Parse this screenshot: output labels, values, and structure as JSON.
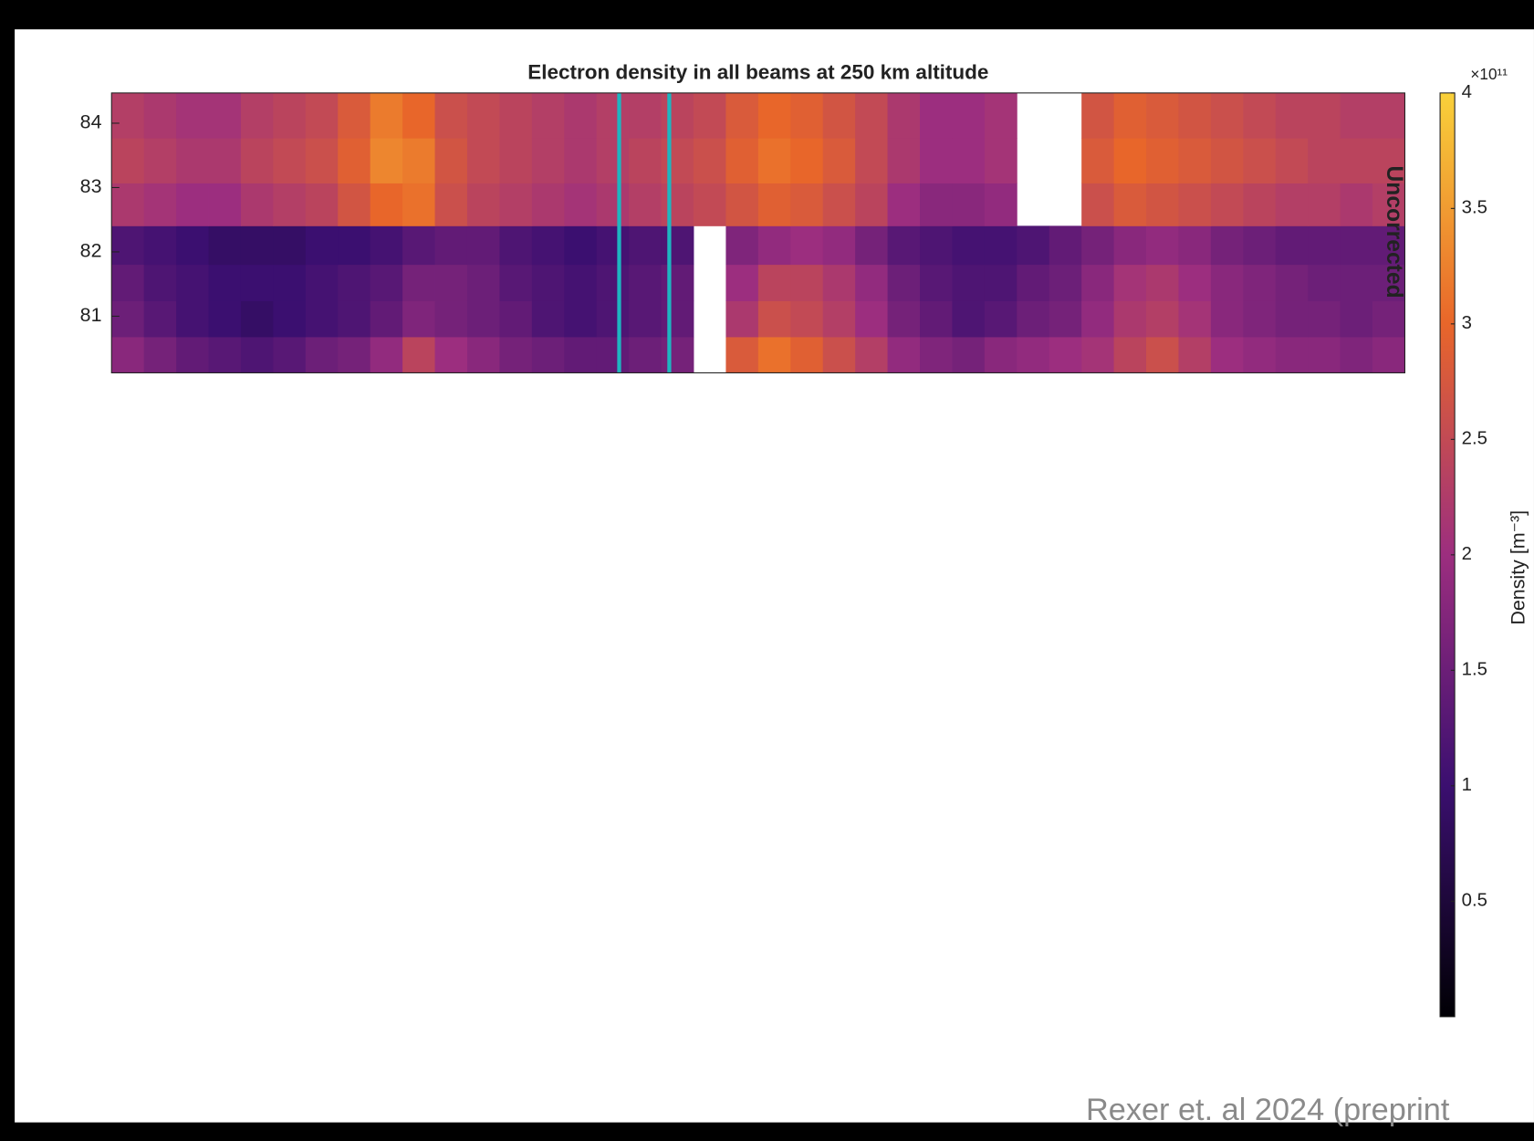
{
  "chart_data": {
    "type": "heatmap",
    "title": "Electron density in all beams at 250 km altitude",
    "annotation": "Uncorrected",
    "colorbar_label": "Density [m⁻³]",
    "colorbar_exponent": "×10¹¹",
    "citation": "Rexer et. al 2024 (preprint",
    "xlim": [
      0,
      40
    ],
    "ylim": [
      80.12,
      84.47
    ],
    "yticks": [
      81,
      82,
      83,
      84
    ],
    "y": [
      80.4,
      80.96,
      81.52,
      82.09,
      82.72,
      83.42,
      84.12
    ],
    "clim": [
      0,
      4
    ],
    "cticks": [
      0.5,
      1,
      1.5,
      2,
      2.5,
      3,
      3.5,
      4
    ],
    "colormap": [
      "#000004",
      "#3b0f70",
      "#9c2e7f",
      "#e8662a",
      "#f9d13a"
    ],
    "vlines": [
      15.7,
      17.25
    ],
    "vline_color": "#1fb5c0",
    "z": [
      [
        1.8,
        1.6,
        1.4,
        1.3,
        1.2,
        1.3,
        1.5,
        1.6,
        1.9,
        2.4,
        2.0,
        1.8,
        1.6,
        1.5,
        1.4,
        1.4,
        1.5,
        1.6,
        null,
        2.8,
        3.1,
        2.9,
        2.6,
        2.3,
        1.9,
        1.7,
        1.6,
        1.8,
        1.9,
        2.0,
        2.1,
        2.4,
        2.6,
        2.3,
        2.0,
        1.9,
        1.8,
        1.8,
        1.7,
        1.8
      ],
      [
        1.5,
        1.3,
        1.1,
        1.0,
        0.9,
        1.0,
        1.1,
        1.2,
        1.4,
        1.7,
        1.6,
        1.5,
        1.4,
        1.2,
        1.1,
        1.2,
        1.3,
        1.4,
        null,
        2.2,
        2.6,
        2.5,
        2.3,
        2.0,
        1.6,
        1.4,
        1.2,
        1.3,
        1.5,
        1.6,
        1.9,
        2.2,
        2.3,
        2.1,
        1.8,
        1.7,
        1.6,
        1.6,
        1.5,
        1.6
      ],
      [
        1.4,
        1.2,
        1.1,
        1.0,
        1.0,
        1.0,
        1.1,
        1.2,
        1.3,
        1.6,
        1.6,
        1.5,
        1.3,
        1.2,
        1.1,
        1.2,
        1.3,
        1.4,
        null,
        2.0,
        2.4,
        2.4,
        2.2,
        1.9,
        1.5,
        1.3,
        1.2,
        1.2,
        1.4,
        1.5,
        1.8,
        2.1,
        2.2,
        2.0,
        1.8,
        1.7,
        1.6,
        1.5,
        1.5,
        1.5
      ],
      [
        1.2,
        1.1,
        1.0,
        0.9,
        0.9,
        0.9,
        1.0,
        1.0,
        1.1,
        1.3,
        1.4,
        1.4,
        1.2,
        1.1,
        1.0,
        1.1,
        1.2,
        1.2,
        null,
        1.7,
        1.9,
        2.0,
        1.9,
        1.6,
        1.3,
        1.2,
        1.1,
        1.1,
        1.2,
        1.4,
        1.6,
        1.8,
        1.9,
        1.8,
        1.6,
        1.5,
        1.4,
        1.4,
        1.4,
        1.4
      ],
      [
        2.2,
        2.1,
        2.0,
        2.0,
        2.2,
        2.3,
        2.4,
        2.7,
        3.0,
        3.1,
        2.6,
        2.4,
        2.3,
        2.2,
        2.1,
        2.2,
        2.3,
        2.4,
        2.5,
        2.7,
        2.9,
        2.8,
        2.6,
        2.4,
        2.0,
        1.8,
        1.8,
        1.9,
        null,
        null,
        2.6,
        2.8,
        2.7,
        2.6,
        2.5,
        2.4,
        2.3,
        2.3,
        2.2,
        2.3
      ],
      [
        2.4,
        2.3,
        2.2,
        2.2,
        2.4,
        2.5,
        2.6,
        2.9,
        3.3,
        3.2,
        2.7,
        2.5,
        2.4,
        2.3,
        2.2,
        2.3,
        2.4,
        2.5,
        2.6,
        2.9,
        3.1,
        3.0,
        2.8,
        2.5,
        2.2,
        2.0,
        2.0,
        2.1,
        null,
        null,
        2.8,
        3.0,
        2.9,
        2.8,
        2.7,
        2.6,
        2.5,
        2.4,
        2.4,
        2.4
      ],
      [
        2.3,
        2.2,
        2.1,
        2.1,
        2.3,
        2.4,
        2.5,
        2.8,
        3.2,
        3.0,
        2.6,
        2.5,
        2.4,
        2.3,
        2.2,
        2.3,
        2.3,
        2.4,
        2.5,
        2.8,
        3.0,
        2.9,
        2.7,
        2.5,
        2.2,
        2.0,
        2.0,
        2.1,
        null,
        null,
        2.7,
        2.9,
        2.8,
        2.7,
        2.6,
        2.5,
        2.4,
        2.4,
        2.3,
        2.3
      ]
    ]
  }
}
